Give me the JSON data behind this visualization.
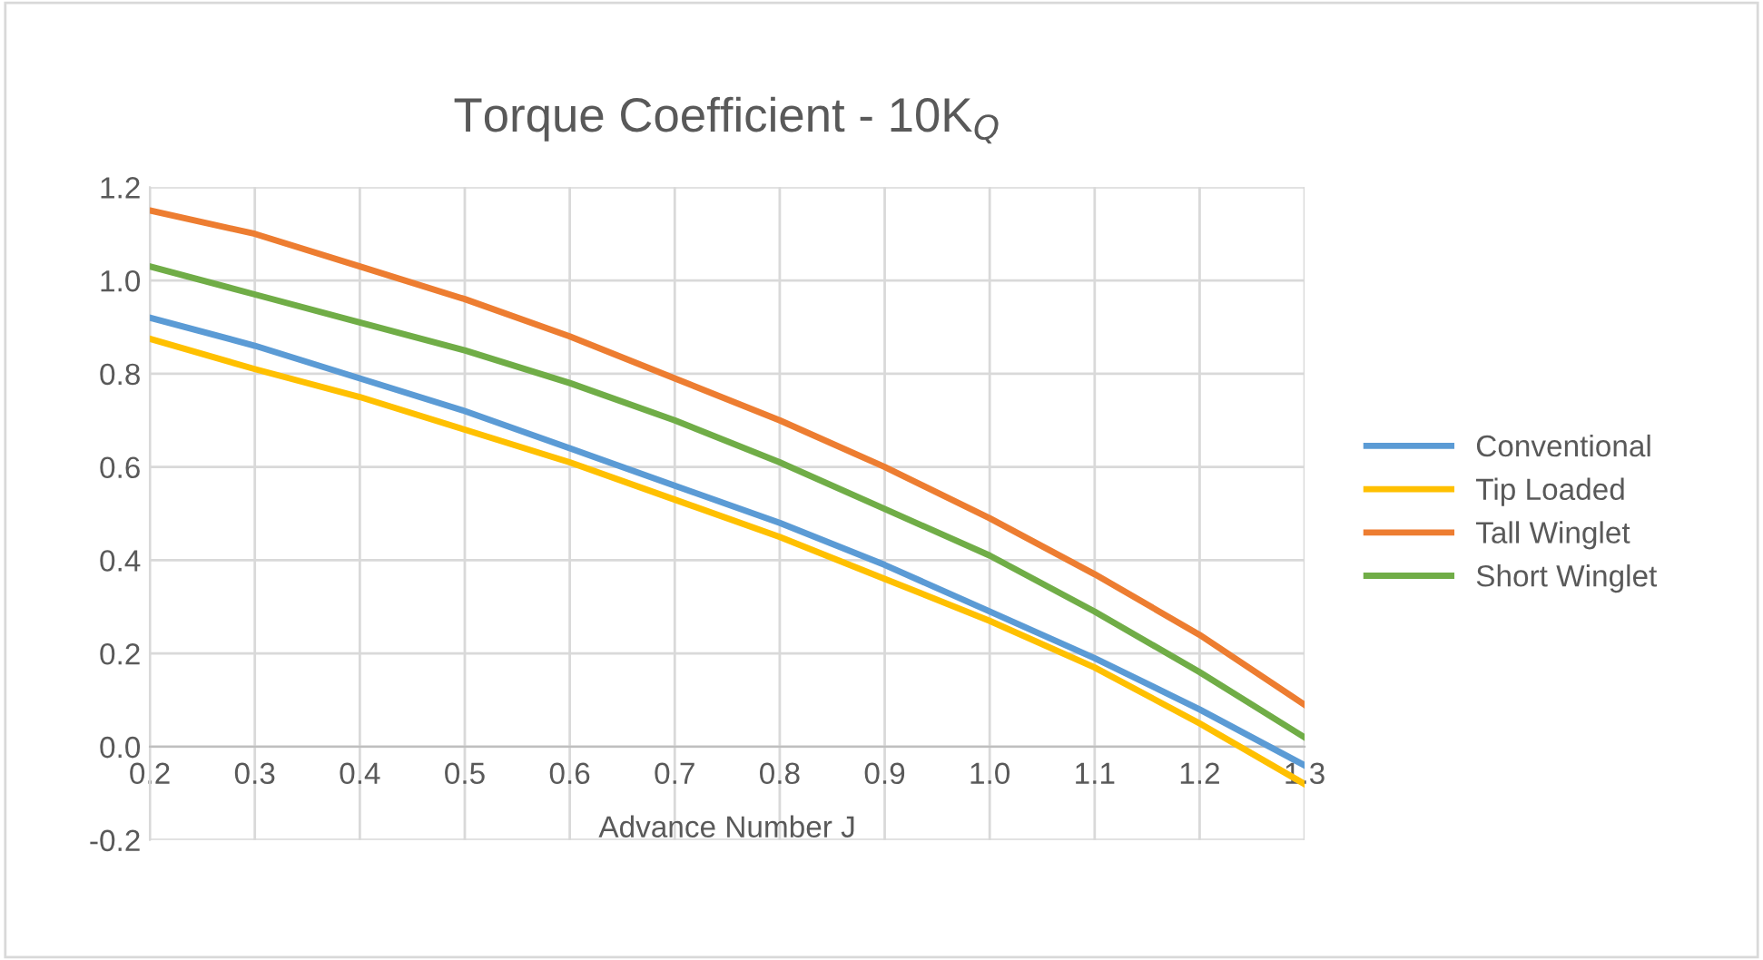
{
  "chart_data": {
    "type": "line",
    "title": "Torque Coefficient - 10K$_{Q}$",
    "xlabel": "Advance Number J",
    "x": [
      0.2,
      0.3,
      0.4,
      0.5,
      0.6,
      0.7,
      0.8,
      0.9,
      1.0,
      1.1,
      1.2,
      1.3
    ],
    "series": [
      {
        "name": "Conventional",
        "color": "#5b9bd5",
        "values": [
          0.92,
          0.86,
          0.79,
          0.72,
          0.64,
          0.56,
          0.48,
          0.39,
          0.29,
          0.19,
          0.08,
          -0.04
        ]
      },
      {
        "name": "Tip Loaded",
        "color": "#ffc000",
        "values": [
          0.875,
          0.81,
          0.75,
          0.68,
          0.61,
          0.53,
          0.45,
          0.36,
          0.27,
          0.17,
          0.05,
          -0.08
        ]
      },
      {
        "name": "Tall Winglet",
        "color": "#ed7d31",
        "values": [
          1.15,
          1.1,
          1.03,
          0.96,
          0.88,
          0.79,
          0.7,
          0.6,
          0.49,
          0.37,
          0.24,
          0.09
        ]
      },
      {
        "name": "Short Winglet",
        "color": "#70ad47",
        "values": [
          1.03,
          0.97,
          0.91,
          0.85,
          0.78,
          0.7,
          0.61,
          0.51,
          0.41,
          0.29,
          0.16,
          0.02
        ]
      }
    ],
    "xlim": [
      0.2,
      1.3
    ],
    "xticks": [
      {
        "value": 0.2,
        "label": "0.2"
      },
      {
        "value": 0.3,
        "label": "0.3"
      },
      {
        "value": 0.4,
        "label": "0.4"
      },
      {
        "value": 0.5,
        "label": "0.5"
      },
      {
        "value": 0.6,
        "label": "0.6"
      },
      {
        "value": 0.7,
        "label": "0.7"
      },
      {
        "value": 0.8,
        "label": "0.8"
      },
      {
        "value": 0.9,
        "label": "0.9"
      },
      {
        "value": 1.0,
        "label": "1.0"
      },
      {
        "value": 1.1,
        "label": "1.1"
      },
      {
        "value": 1.2,
        "label": "1.2"
      },
      {
        "value": 1.3,
        "label": "1.3"
      }
    ],
    "ylim": [
      -0.2,
      1.2
    ],
    "yticks": [
      {
        "value": -0.2,
        "label": "-0.2"
      },
      {
        "value": 0.0,
        "label": "0.0"
      },
      {
        "value": 0.2,
        "label": "0.2"
      },
      {
        "value": 0.4,
        "label": "0.4"
      },
      {
        "value": 0.6,
        "label": "0.6"
      },
      {
        "value": 0.8,
        "label": "0.8"
      },
      {
        "value": 1.0,
        "label": "1.0"
      },
      {
        "value": 1.2,
        "label": "1.2"
      }
    ],
    "grid": true,
    "legend": "right",
    "marker": "none",
    "line_style": "solid"
  }
}
